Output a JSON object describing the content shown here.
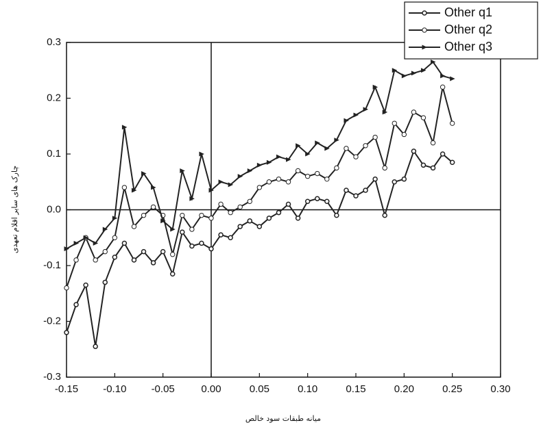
{
  "chart_data": {
    "type": "line",
    "x_label": "میانه طبقات سود خالص",
    "y_label": "چارک های سایر اقلام تعهدی",
    "x": [
      -0.15,
      -0.14,
      -0.13,
      -0.12,
      -0.11,
      -0.1,
      -0.09,
      -0.08,
      -0.07,
      -0.06,
      -0.05,
      -0.04,
      -0.03,
      -0.02,
      -0.01,
      0,
      0.01,
      0.02,
      0.03,
      0.04,
      0.05,
      0.06,
      0.07,
      0.08,
      0.09,
      0.1,
      0.11,
      0.12,
      0.13,
      0.14,
      0.15,
      0.16,
      0.17,
      0.18,
      0.19,
      0.2,
      0.21,
      0.22,
      0.23,
      0.24,
      0.25
    ],
    "series": [
      {
        "name": "Other q1",
        "color": "#222222",
        "marker": "dot",
        "values": [
          -0.22,
          -0.17,
          -0.135,
          -0.245,
          -0.13,
          -0.085,
          -0.06,
          -0.09,
          -0.075,
          -0.095,
          -0.075,
          -0.115,
          -0.04,
          -0.065,
          -0.06,
          -0.07,
          -0.045,
          -0.05,
          -0.03,
          -0.02,
          -0.03,
          -0.015,
          -0.005,
          0.01,
          -0.015,
          0.015,
          0.02,
          0.015,
          -0.01,
          0.035,
          0.025,
          0.035,
          0.055,
          -0.01,
          0.05,
          0.055,
          0.105,
          0.08,
          0.075,
          0.1,
          0.085
        ]
      },
      {
        "name": "Other q2",
        "color": "#222222",
        "marker": "circle",
        "values": [
          -0.14,
          -0.09,
          -0.05,
          -0.09,
          -0.075,
          -0.05,
          0.04,
          -0.03,
          -0.01,
          0.005,
          -0.01,
          -0.08,
          -0.01,
          -0.035,
          -0.01,
          -0.015,
          0.01,
          -0.005,
          0.005,
          0.015,
          0.04,
          0.05,
          0.055,
          0.05,
          0.07,
          0.06,
          0.065,
          0.055,
          0.075,
          0.11,
          0.095,
          0.115,
          0.13,
          0.075,
          0.155,
          0.135,
          0.175,
          0.165,
          0.12,
          0.22,
          0.155
        ]
      },
      {
        "name": "Other q3",
        "color": "#222222",
        "marker": "triangle",
        "values": [
          -0.07,
          -0.06,
          -0.05,
          -0.06,
          -0.035,
          -0.015,
          0.148,
          0.035,
          0.065,
          0.04,
          -0.02,
          -0.035,
          0.07,
          0.02,
          0.1,
          0.035,
          0.05,
          0.045,
          0.06,
          0.07,
          0.08,
          0.085,
          0.095,
          0.09,
          0.115,
          0.1,
          0.12,
          0.11,
          0.125,
          0.16,
          0.17,
          0.18,
          0.22,
          0.175,
          0.25,
          0.24,
          0.245,
          0.25,
          0.265,
          0.24,
          0.235
        ]
      }
    ],
    "xlim": [
      -0.15,
      0.3
    ],
    "ylim": [
      -0.3,
      0.3
    ],
    "xticks": [
      -0.15,
      {
        "value": -0.1,
        "label": "-0.10"
      },
      -0.05,
      {
        "value": 0,
        "label": "0.00"
      },
      0.05,
      {
        "value": 0.1,
        "label": "0.10"
      },
      0.15,
      {
        "value": 0.2,
        "label": "0.20"
      },
      0.25,
      {
        "value": 0.3,
        "label": "0.30"
      }
    ],
    "yticks": [
      -0.3,
      -0.2,
      -0.1,
      {
        "value": 0,
        "label": "0.0"
      },
      0.1,
      0.2,
      0.3
    ],
    "zero_lines": true,
    "legend": "top-right"
  }
}
